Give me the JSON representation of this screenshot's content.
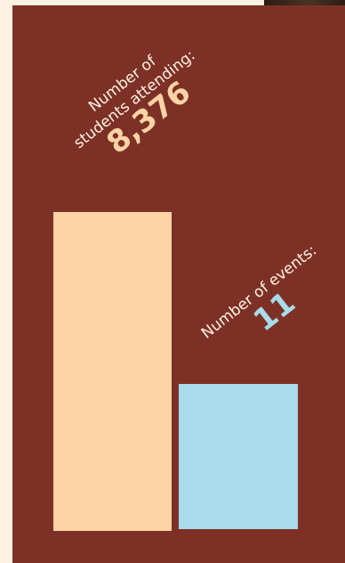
{
  "colors": {
    "background": "#fdf1e2",
    "panel": "#7d3126",
    "students_bar": "#fdd3a5",
    "events_bar": "#a9dbea",
    "label_text": "#fdf1e2"
  },
  "chart_data": {
    "type": "bar",
    "title": "",
    "categories": [
      "students attending",
      "events"
    ],
    "series": [
      {
        "values": [
          8376,
          11
        ]
      }
    ],
    "bars": [
      {
        "label_line1": "Number of",
        "label_line2": "students attending:",
        "value_text": "8,376",
        "value": 8376,
        "color": "#fdd3a5"
      },
      {
        "label_line1": "Number of events:",
        "label_line2": "",
        "value_text": "11",
        "value": 11,
        "color": "#a9dbea"
      }
    ],
    "scale": "independent (not to common axis)",
    "grid": false,
    "legend": "none"
  }
}
